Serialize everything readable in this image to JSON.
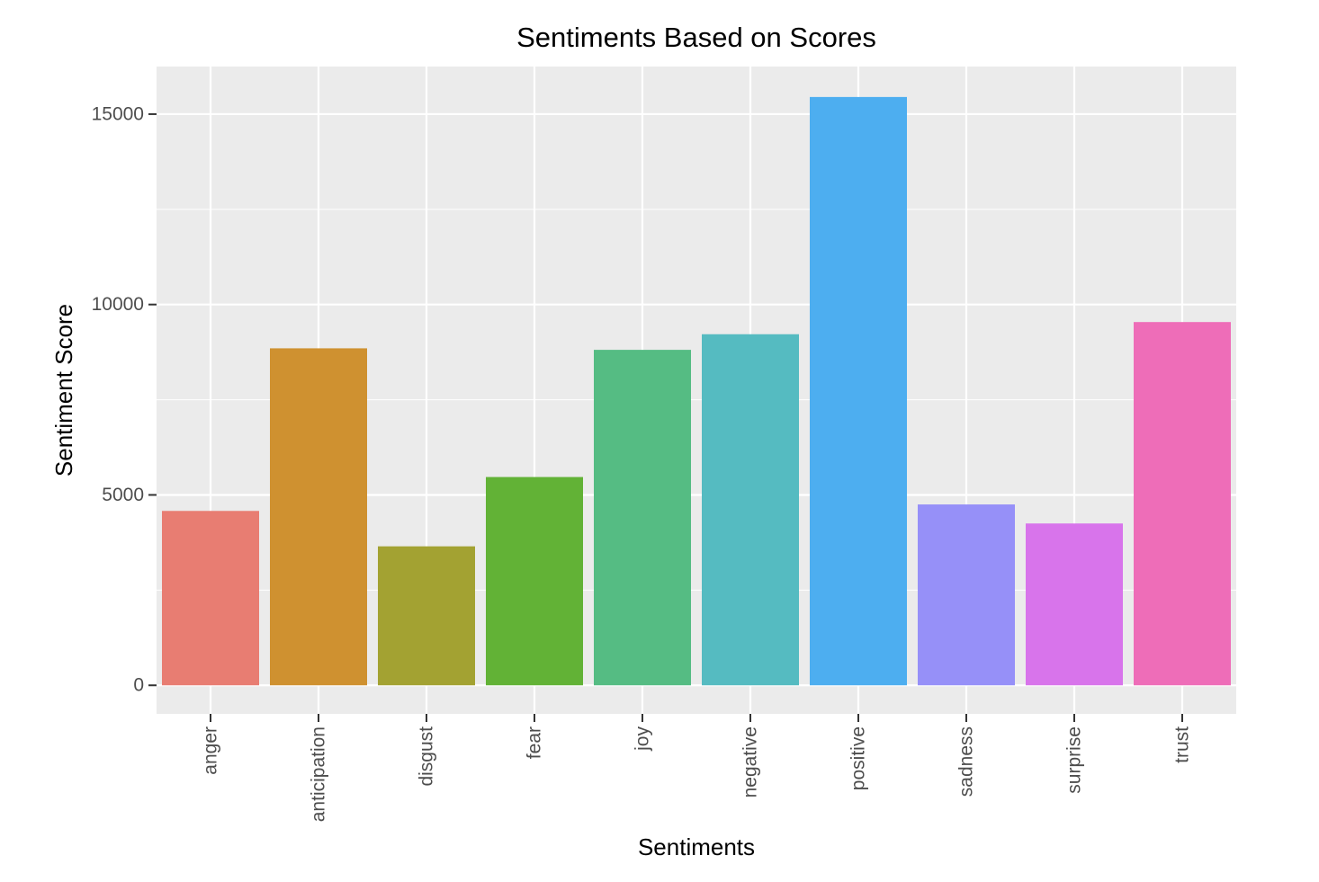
{
  "chart_data": {
    "type": "bar",
    "title": "Sentiments Based on Scores",
    "xlabel": "Sentiments",
    "ylabel": "Sentiment Score",
    "categories": [
      "anger",
      "anticipation",
      "disgust",
      "fear",
      "joy",
      "negative",
      "positive",
      "sadness",
      "surprise",
      "trust"
    ],
    "values": [
      4580,
      8850,
      3650,
      5470,
      8810,
      9220,
      15450,
      4750,
      4250,
      9540
    ],
    "colors": [
      "#E87D72",
      "#CF9130",
      "#A3A232",
      "#62B236",
      "#55BC83",
      "#55BBC1",
      "#4DAEF0",
      "#9690F8",
      "#D874EB",
      "#EE6DB8"
    ],
    "ylim": [
      -750,
      16250
    ],
    "yticks": [
      0,
      5000,
      10000,
      15000
    ],
    "yticks_labels": [
      "0",
      "5000",
      "10000",
      "15000"
    ],
    "y_minor_ticks": [
      2500,
      7500,
      12500
    ],
    "grid": true,
    "legend": "none",
    "panel_background": "#EBEBEB",
    "grid_color": "#FFFFFF"
  }
}
